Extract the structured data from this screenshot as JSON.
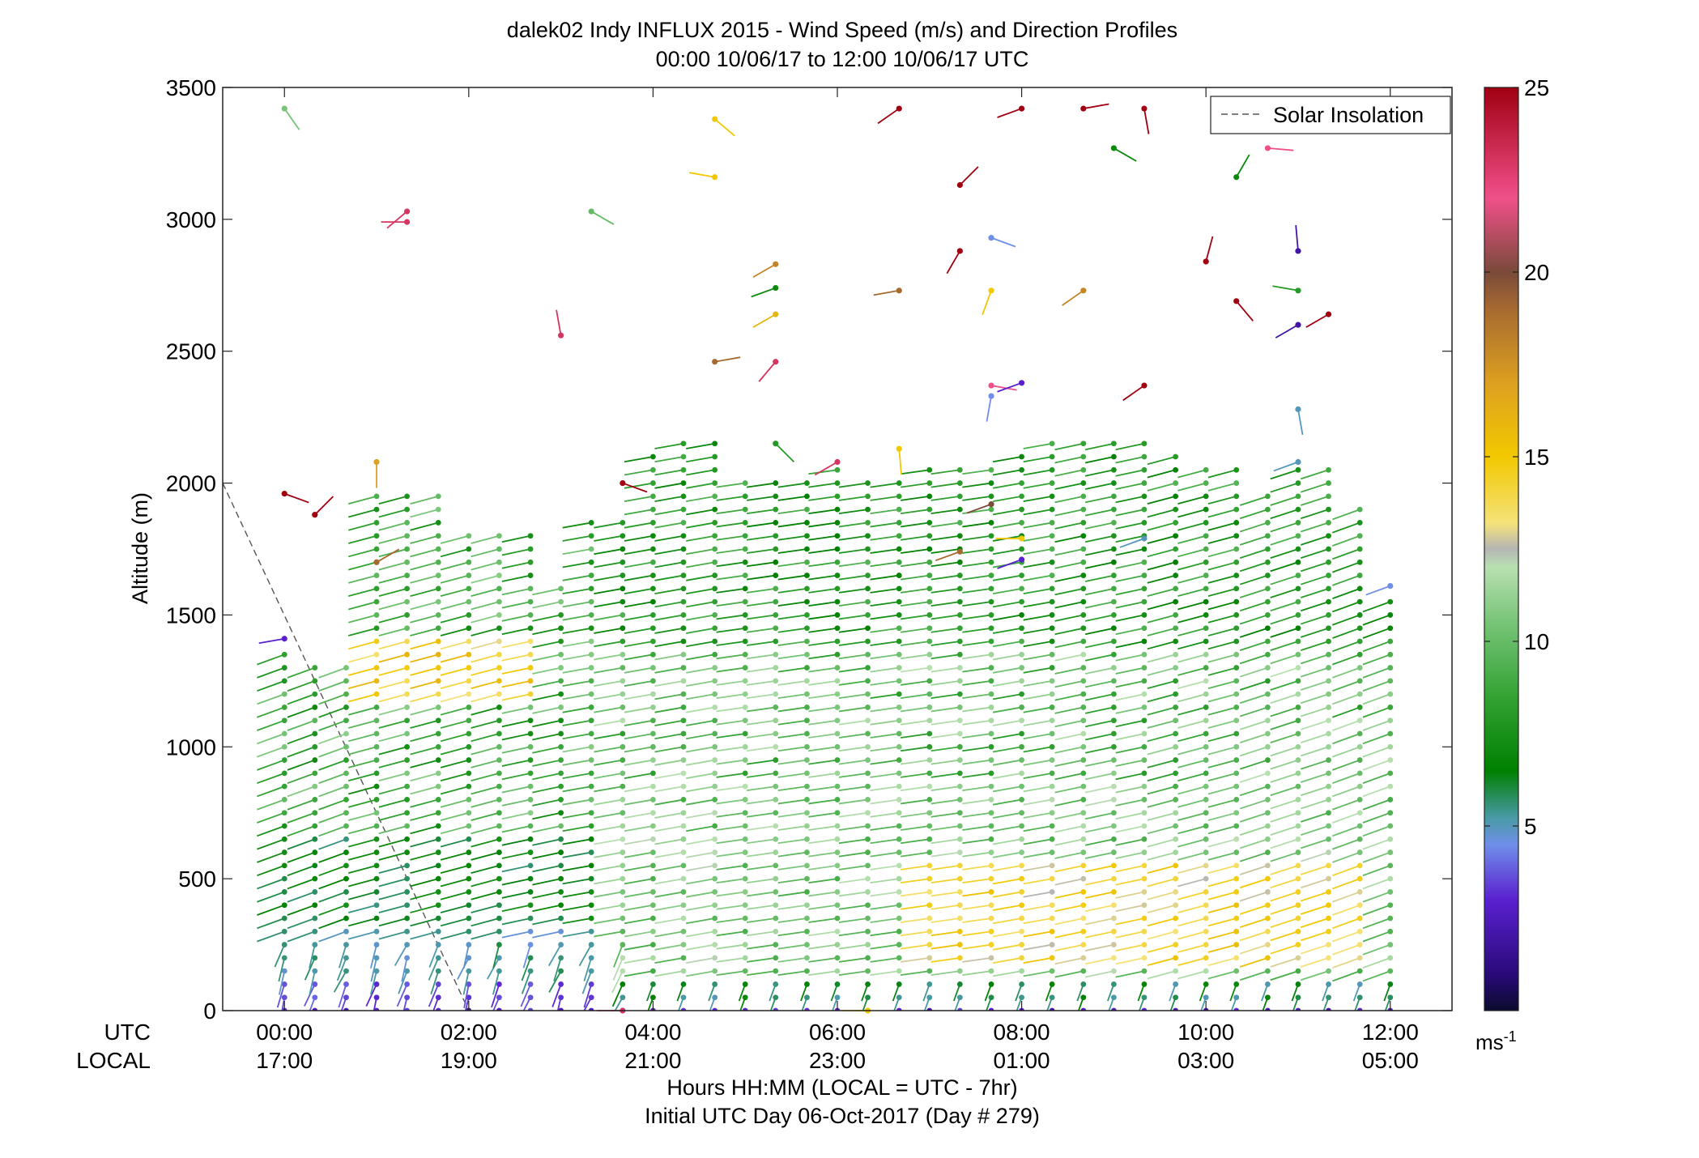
{
  "chart_data": {
    "type": "wind-profile",
    "title_line1": "dalek02 Indy INFLUX 2015 - Wind Speed (m/s) and Direction Profiles",
    "title_line2": "00:00 10/06/17 to 12:00 10/06/17  UTC",
    "ylabel": "Altitude (m)",
    "xlabel_line1": "Hours HH:MM  (LOCAL = UTC - 7hr)",
    "xlabel_line2": "Initial UTC Day 06-Oct-2017 (Day # 279)",
    "row_label_utc": "UTC",
    "row_label_local": "LOCAL",
    "ylim": [
      0,
      3500
    ],
    "xlim_hours": [
      -0.67,
      12.67
    ],
    "yticks": [
      0,
      500,
      1000,
      1500,
      2000,
      2500,
      3000,
      3500
    ],
    "ytick_labels": [
      "0",
      "500",
      "1000",
      "1500",
      "2000",
      "2500",
      "3000",
      "3500"
    ],
    "xticks_hours": [
      0,
      2,
      4,
      6,
      8,
      10,
      12
    ],
    "xtick_utc_labels": [
      "00:00",
      "02:00",
      "04:00",
      "06:00",
      "08:00",
      "10:00",
      "12:00"
    ],
    "xtick_local_labels": [
      "17:00",
      "19:00",
      "21:00",
      "23:00",
      "01:00",
      "03:00",
      "05:00"
    ],
    "legend": {
      "label": "Solar Insolation",
      "placement": "top-right",
      "style": "dashed gray line"
    },
    "solar_insolation_line": {
      "x_hours": [
        -0.67,
        2.0
      ],
      "y_m": [
        2000,
        0
      ]
    },
    "colorbar": {
      "range": [
        0,
        25
      ],
      "ticks": [
        5,
        10,
        15,
        20,
        25
      ],
      "tick_labels": [
        "5",
        "10",
        "15",
        "20",
        "25"
      ],
      "unit_label": "ms",
      "unit_exponent": "-1",
      "stops": [
        {
          "v": 0,
          "c": "#0b0b2e"
        },
        {
          "v": 1,
          "c": "#2a0a7a"
        },
        {
          "v": 3,
          "c": "#5a20d0"
        },
        {
          "v": 4.5,
          "c": "#6f8fe8"
        },
        {
          "v": 5.2,
          "c": "#4a9aa8"
        },
        {
          "v": 6.5,
          "c": "#008000"
        },
        {
          "v": 8.5,
          "c": "#33a333"
        },
        {
          "v": 10.5,
          "c": "#77c477"
        },
        {
          "v": 12,
          "c": "#b8e0b0"
        },
        {
          "v": 12.5,
          "c": "#b5b5b5"
        },
        {
          "v": 13.2,
          "c": "#f5e27a"
        },
        {
          "v": 15,
          "c": "#f2c800"
        },
        {
          "v": 17,
          "c": "#dda020"
        },
        {
          "v": 19,
          "c": "#a66a30"
        },
        {
          "v": 20,
          "c": "#7a4a3a"
        },
        {
          "v": 22,
          "c": "#f0508a"
        },
        {
          "v": 25,
          "c": "#a00010"
        }
      ]
    },
    "profiles": [
      {
        "t": 0.0,
        "top": 1380,
        "angle": -20
      },
      {
        "t": 0.33,
        "top": 1300,
        "angle": -20
      },
      {
        "t": 0.67,
        "top": 1340,
        "angle": -20
      },
      {
        "t": 1.0,
        "top": 1960,
        "angle": -15
      },
      {
        "t": 1.33,
        "top": 1960,
        "angle": -15
      },
      {
        "t": 1.67,
        "top": 1960,
        "angle": -15
      },
      {
        "t": 2.0,
        "top": 1830,
        "angle": -15
      },
      {
        "t": 2.33,
        "top": 1840,
        "angle": -15
      },
      {
        "t": 2.67,
        "top": 1840,
        "angle": -12
      },
      {
        "t": 3.0,
        "top": 1600,
        "angle": -12
      },
      {
        "t": 3.33,
        "top": 1870,
        "angle": -10
      },
      {
        "t": 3.67,
        "top": 1880,
        "angle": -10
      },
      {
        "t": 4.0,
        "top": 2140,
        "angle": -10
      },
      {
        "t": 4.33,
        "top": 2160,
        "angle": -10
      },
      {
        "t": 4.67,
        "top": 2170,
        "angle": -10
      },
      {
        "t": 5.0,
        "top": 2030,
        "angle": -8
      },
      {
        "t": 5.33,
        "top": 2030,
        "angle": -8
      },
      {
        "t": 5.67,
        "top": 2030,
        "angle": -8
      },
      {
        "t": 6.0,
        "top": 2050,
        "angle": -8
      },
      {
        "t": 6.33,
        "top": 2030,
        "angle": -8
      },
      {
        "t": 6.67,
        "top": 2000,
        "angle": -8
      },
      {
        "t": 7.0,
        "top": 2090,
        "angle": -8
      },
      {
        "t": 7.33,
        "top": 2050,
        "angle": -8
      },
      {
        "t": 7.67,
        "top": 2050,
        "angle": -8
      },
      {
        "t": 8.0,
        "top": 2120,
        "angle": -10
      },
      {
        "t": 8.33,
        "top": 2170,
        "angle": -10
      },
      {
        "t": 8.67,
        "top": 2170,
        "angle": -12
      },
      {
        "t": 9.0,
        "top": 2150,
        "angle": -12
      },
      {
        "t": 9.33,
        "top": 2150,
        "angle": -12
      },
      {
        "t": 9.67,
        "top": 2140,
        "angle": -15
      },
      {
        "t": 10.0,
        "top": 2090,
        "angle": -15
      },
      {
        "t": 10.33,
        "top": 2060,
        "angle": -15
      },
      {
        "t": 10.67,
        "top": 1970,
        "angle": -18
      },
      {
        "t": 11.0,
        "top": 2080,
        "angle": -18
      },
      {
        "t": 11.33,
        "top": 2060,
        "angle": -18
      },
      {
        "t": 11.67,
        "top": 1940,
        "angle": -20
      },
      {
        "t": 12.0,
        "top": 1580,
        "angle": -20
      }
    ],
    "scatter_points": [
      {
        "t": 0.0,
        "z": 3420,
        "speed": 10.5,
        "angle": -55
      },
      {
        "t": 1.33,
        "z": 2990,
        "speed": 23,
        "angle": 180
      },
      {
        "t": 1.33,
        "z": 3030,
        "speed": 23,
        "angle": -140
      },
      {
        "t": 0.0,
        "z": 1960,
        "speed": 25,
        "angle": -20
      },
      {
        "t": 0.33,
        "z": 1880,
        "speed": 25,
        "angle": 45
      },
      {
        "t": 1.0,
        "z": 2080,
        "speed": 17,
        "angle": 270
      },
      {
        "t": 1.0,
        "z": 1700,
        "speed": 19,
        "angle": 30
      },
      {
        "t": 3.0,
        "z": 2560,
        "speed": 23,
        "angle": 100
      },
      {
        "t": 3.33,
        "z": 3030,
        "speed": 10,
        "angle": -30
      },
      {
        "t": 4.67,
        "z": 3380,
        "speed": 15,
        "angle": -40
      },
      {
        "t": 4.67,
        "z": 3160,
        "speed": 15,
        "angle": 170
      },
      {
        "t": 5.33,
        "z": 2830,
        "speed": 18,
        "angle": -150
      },
      {
        "t": 5.33,
        "z": 2740,
        "speed": 7,
        "angle": 200
      },
      {
        "t": 5.33,
        "z": 2640,
        "speed": 16,
        "angle": -150
      },
      {
        "t": 5.33,
        "z": 2460,
        "speed": 23,
        "angle": -130
      },
      {
        "t": 4.67,
        "z": 2460,
        "speed": 19,
        "angle": 10
      },
      {
        "t": 5.33,
        "z": 2150,
        "speed": 8,
        "angle": -45
      },
      {
        "t": 3.67,
        "z": 2000,
        "speed": 25,
        "angle": -20
      },
      {
        "t": 6.0,
        "z": 2080,
        "speed": 23,
        "angle": 210
      },
      {
        "t": 6.67,
        "z": 3420,
        "speed": 25,
        "angle": 215
      },
      {
        "t": 6.67,
        "z": 2730,
        "speed": 19,
        "angle": 190
      },
      {
        "t": 6.67,
        "z": 2130,
        "speed": 15,
        "angle": 275
      },
      {
        "t": 7.33,
        "z": 3130,
        "speed": 25,
        "angle": 45
      },
      {
        "t": 7.33,
        "z": 2880,
        "speed": 25,
        "angle": 240
      },
      {
        "t": 7.67,
        "z": 2930,
        "speed": 4.5,
        "angle": -20
      },
      {
        "t": 7.67,
        "z": 2730,
        "speed": 15,
        "angle": 250
      },
      {
        "t": 7.67,
        "z": 2370,
        "speed": 22,
        "angle": -10
      },
      {
        "t": 7.67,
        "z": 2330,
        "speed": 4.5,
        "angle": 260
      },
      {
        "t": 7.67,
        "z": 1920,
        "speed": 20,
        "angle": 200
      },
      {
        "t": 7.33,
        "z": 1740,
        "speed": 19,
        "angle": 200
      },
      {
        "t": 8.0,
        "z": 3420,
        "speed": 25,
        "angle": 200
      },
      {
        "t": 8.0,
        "z": 2380,
        "speed": 3,
        "angle": 200
      },
      {
        "t": 8.0,
        "z": 1790,
        "speed": 15,
        "angle": 180
      },
      {
        "t": 8.0,
        "z": 1710,
        "speed": 3,
        "angle": 200
      },
      {
        "t": 8.67,
        "z": 3420,
        "speed": 25,
        "angle": 10
      },
      {
        "t": 8.67,
        "z": 2730,
        "speed": 18,
        "angle": 215
      },
      {
        "t": 9.0,
        "z": 3270,
        "speed": 7,
        "angle": -30
      },
      {
        "t": 9.33,
        "z": 3420,
        "speed": 25,
        "angle": -80
      },
      {
        "t": 9.33,
        "z": 2370,
        "speed": 25,
        "angle": 215
      },
      {
        "t": 10.0,
        "z": 2840,
        "speed": 25,
        "angle": 75
      },
      {
        "t": 10.33,
        "z": 3160,
        "speed": 7,
        "angle": 60
      },
      {
        "t": 10.67,
        "z": 3270,
        "speed": 22,
        "angle": -5
      },
      {
        "t": 10.33,
        "z": 2690,
        "speed": 25,
        "angle": -50
      },
      {
        "t": 11.0,
        "z": 2880,
        "speed": 2,
        "angle": 95
      },
      {
        "t": 11.0,
        "z": 2730,
        "speed": 8,
        "angle": 170
      },
      {
        "t": 11.0,
        "z": 2600,
        "speed": 2,
        "angle": 210
      },
      {
        "t": 11.33,
        "z": 2640,
        "speed": 25,
        "angle": 210
      },
      {
        "t": 11.0,
        "z": 2280,
        "speed": 5,
        "angle": -80
      },
      {
        "t": 11.0,
        "z": 2080,
        "speed": 5,
        "angle": 200
      },
      {
        "t": 12.0,
        "z": 1610,
        "speed": 4.5,
        "angle": 200
      },
      {
        "t": 0.0,
        "z": 1410,
        "speed": 3,
        "angle": 190
      },
      {
        "t": 9.33,
        "z": 1790,
        "speed": 5,
        "angle": 200
      },
      {
        "t": 6.33,
        "z": 0,
        "speed": 15,
        "angle": 180
      },
      {
        "t": 3.67,
        "z": 0,
        "speed": 23,
        "angle": 180
      }
    ]
  }
}
